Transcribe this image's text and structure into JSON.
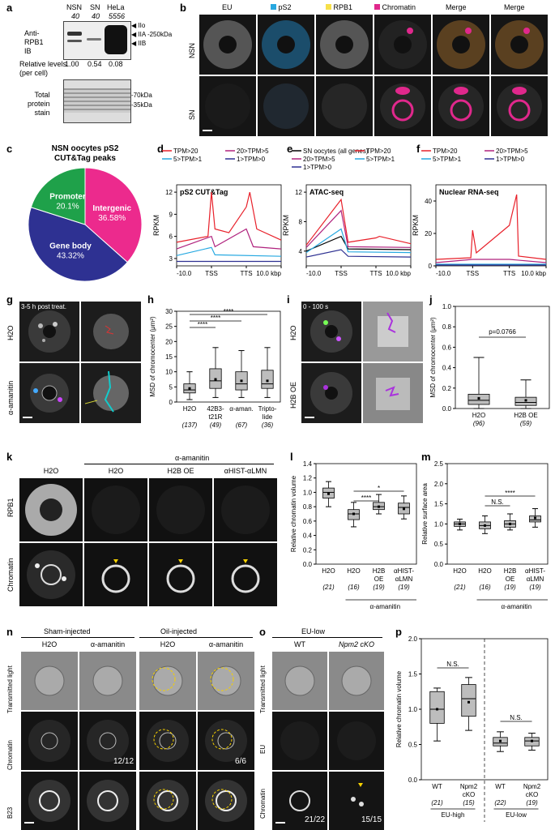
{
  "panels": {
    "a": {
      "label": "a",
      "lanes": [
        "NSN",
        "SN",
        "HeLa"
      ],
      "lane_counts": [
        "40",
        "40",
        "5556"
      ],
      "ib_label": [
        "Anti-",
        "RPB1",
        "IB"
      ],
      "bands": [
        "IIo",
        "IIA",
        "IIB"
      ],
      "mw_top": "250kDa",
      "rel_label": [
        "Relative levels",
        "(per cell)"
      ],
      "rel_values": [
        "1.00",
        "0.54",
        "0.08"
      ],
      "total_label": [
        "Total",
        "protein",
        "stain"
      ],
      "mw_low": [
        "70kDa",
        "35kDa"
      ]
    },
    "b": {
      "label": "b",
      "cols": [
        "EU",
        "pS2",
        "RPB1",
        "Chromatin",
        "Merge",
        "Merge"
      ],
      "col_colors": [
        "",
        "#29a8e0",
        "#f6e04a",
        "#e0288c",
        "",
        ""
      ],
      "rows": [
        "NSN",
        "SN"
      ]
    },
    "c": {
      "label": "c",
      "title": [
        "NSN oocytes pS2",
        "CUT&Tag peaks"
      ],
      "slices": [
        {
          "name": "Intergenic",
          "pct": "36.58%",
          "value": 36.58,
          "color": "#ec2a8d"
        },
        {
          "name": "Gene body",
          "pct": "43.32%",
          "value": 43.32,
          "color": "#2e3192"
        },
        {
          "name": "Promoter",
          "pct": "20.1%",
          "value": 20.1,
          "color": "#1fa14a"
        }
      ]
    },
    "d": {
      "label": "d",
      "title": "pS2 CUT&Tag",
      "ylabel": "RPKM",
      "yticks": [
        "3",
        "6",
        "9",
        "12"
      ],
      "xticks": [
        "-10.0",
        "TSS",
        "TTS",
        "10.0 kbp"
      ],
      "legend": [
        "TPM>20",
        "20>TPM>5",
        "5>TPM>1",
        "1>TPM>0"
      ]
    },
    "e": {
      "label": "e",
      "title": "ATAC-seq",
      "ylabel": "RPKM",
      "yticks": [
        "4",
        "8",
        "12"
      ],
      "xticks": [
        "-10.0",
        "TSS",
        "TTS",
        "10.0 kbp"
      ],
      "legend": [
        "SN oocytes (all genes)",
        "TPM>20",
        "20>TPM>5",
        "5>TPM>1",
        "1>TPM>0"
      ]
    },
    "f": {
      "label": "f",
      "title": "Nuclear RNA-seq",
      "ylabel": "RPKM",
      "yticks": [
        "0",
        "20",
        "40"
      ],
      "xticks": [
        "-10.0",
        "TSS",
        "TTS",
        "10.0 kbp"
      ],
      "legend": [
        "TPM>20",
        "20>TPM>5",
        "5>TPM>1",
        "1>TPM>0"
      ]
    },
    "g": {
      "label": "g",
      "time": "3-5 h post treat.",
      "rows": [
        "H2O",
        "α-amanitin"
      ]
    },
    "h": {
      "label": "h",
      "ylabel": "MSD of chromocenter (μm²)",
      "yticks": [
        "0",
        "5",
        "10",
        "15",
        "20",
        "25",
        "30"
      ],
      "groups": [
        "H2O",
        "42B3-",
        "α-aman.",
        "Tripto-"
      ],
      "group_sub": [
        "",
        "t21R",
        "",
        "lide"
      ],
      "n": [
        "(137)",
        "(49)",
        "(67)",
        "(36)"
      ],
      "sig": [
        "****",
        "****",
        "****"
      ]
    },
    "i": {
      "label": "i",
      "time": "0 - 100 s",
      "rows": [
        "H2O",
        "H2B OE"
      ]
    },
    "j": {
      "label": "j",
      "ylabel": "MSD of chromocenter (μm²)",
      "yticks": [
        "0.0",
        "0.2",
        "0.4",
        "0.6",
        "0.8",
        "1.0"
      ],
      "groups": [
        "H2O",
        "H2B OE"
      ],
      "n": [
        "(96)",
        "(59)"
      ],
      "pvalue": "p=0.0766"
    },
    "k": {
      "label": "k",
      "header": "α-amanitin",
      "cols": [
        "H2O",
        "H2O",
        "H2B OE",
        "αHIST-αLMN"
      ],
      "rows": [
        "RPB1",
        "Chromatin"
      ]
    },
    "l": {
      "label": "l",
      "ylabel": "Relative chromatin volume",
      "yticks": [
        "0.0",
        "0.2",
        "0.4",
        "0.6",
        "0.8",
        "1.0",
        "1.2",
        "1.4"
      ],
      "groups": [
        "H2O",
        "H2O",
        "H2B",
        "αHIST-"
      ],
      "group_sub": [
        "",
        "",
        "OE",
        "αLMN"
      ],
      "n": [
        "(21)",
        "(16)",
        "(19)",
        "(19)"
      ],
      "treat": "α-amanitin",
      "sig": [
        "****",
        "*"
      ]
    },
    "m": {
      "label": "m",
      "ylabel": "Relative surface area",
      "yticks": [
        "0.0",
        "0.5",
        "1.0",
        "1.5",
        "2.0",
        "2.5"
      ],
      "groups": [
        "H2O",
        "H2O",
        "H2B",
        "αHIST-"
      ],
      "group_sub": [
        "",
        "",
        "OE",
        "αLMN"
      ],
      "n": [
        "(21)",
        "(16)",
        "(19)",
        "(19)"
      ],
      "treat": "α-amanitin",
      "sig": [
        "N.S.",
        "****"
      ]
    },
    "n": {
      "label": "n",
      "groups": [
        "Sham-injected",
        "Oil-injected"
      ],
      "cols": [
        "H2O",
        "α-amanitin",
        "H2O",
        "α-amanitin"
      ],
      "rows": [
        "Transmitted light",
        "Chromatin",
        "B23"
      ],
      "fractions": [
        "12/12",
        "6/6"
      ]
    },
    "o": {
      "label": "o",
      "group": "EU-low",
      "cols": [
        "WT",
        "Npm2 cKO"
      ],
      "rows": [
        "Transmitted light",
        "EU",
        "Chromatin"
      ],
      "fractions": [
        "21/22",
        "15/15"
      ]
    },
    "p": {
      "label": "p",
      "ylabel": "Relative chromatin volume",
      "yticks": [
        "0.0",
        "0.5",
        "1.0",
        "1.5",
        "2.0"
      ],
      "groups": [
        "WT",
        "Npm2",
        "WT",
        "Npm2"
      ],
      "group_sub": [
        "",
        "cKO",
        "",
        "cKO"
      ],
      "n": [
        "(21)",
        "(15)",
        "(22)",
        "(19)"
      ],
      "conds": [
        "EU-high",
        "EU-low"
      ],
      "sig": [
        "N.S.",
        "N.S."
      ]
    }
  },
  "chart_data": [
    {
      "panel": "d",
      "type": "line",
      "x": [
        -10,
        0,
        10,
        20
      ],
      "series": [
        {
          "name": "TPM>20",
          "color": "#e8202a",
          "points": [
            [
              -10,
              5.2
            ],
            [
              -1,
              6
            ],
            [
              0,
              12
            ],
            [
              1,
              7
            ],
            [
              5,
              6.5
            ],
            [
              10,
              10
            ],
            [
              11,
              12
            ],
            [
              13,
              7
            ],
            [
              20,
              5.5
            ]
          ]
        },
        {
          "name": "20>TPM>5",
          "color": "#b0237e",
          "points": [
            [
              -10,
              4.3
            ],
            [
              0,
              6
            ],
            [
              1,
              4.6
            ],
            [
              10,
              7
            ],
            [
              12,
              4.6
            ],
            [
              20,
              4.3
            ]
          ]
        },
        {
          "name": "5>TPM>1",
          "color": "#27a9e1",
          "points": [
            [
              -10,
              3.4
            ],
            [
              0,
              4.5
            ],
            [
              1,
              3.5
            ],
            [
              20,
              3.3
            ]
          ]
        },
        {
          "name": "1>TPM>0",
          "color": "#2e3192",
          "points": [
            [
              -10,
              2.6
            ],
            [
              20,
              2.6
            ]
          ]
        }
      ],
      "ylim": [
        2,
        13
      ]
    },
    {
      "panel": "e",
      "type": "line",
      "x": [
        -10,
        0,
        10,
        20
      ],
      "series": [
        {
          "name": "SN oocytes (all genes)",
          "color": "#000000",
          "points": [
            [
              -10,
              4
            ],
            [
              0,
              6
            ],
            [
              2,
              4.3
            ],
            [
              20,
              4.2
            ]
          ]
        },
        {
          "name": "TPM>20",
          "color": "#e8202a",
          "points": [
            [
              -10,
              4.8
            ],
            [
              0,
              11
            ],
            [
              2,
              5.2
            ],
            [
              10,
              5.8
            ],
            [
              11,
              6
            ],
            [
              20,
              5
            ]
          ]
        },
        {
          "name": "20>TPM>5",
          "color": "#b0237e",
          "points": [
            [
              -10,
              4.5
            ],
            [
              0,
              9.5
            ],
            [
              2,
              4.6
            ],
            [
              20,
              4.5
            ]
          ]
        },
        {
          "name": "5>TPM>1",
          "color": "#27a9e1",
          "points": [
            [
              -10,
              3.8
            ],
            [
              0,
              7
            ],
            [
              2,
              3.9
            ],
            [
              20,
              3.8
            ]
          ]
        },
        {
          "name": "1>TPM>0",
          "color": "#2e3192",
          "points": [
            [
              -10,
              3.2
            ],
            [
              0,
              4.2
            ],
            [
              2,
              3.3
            ],
            [
              20,
              3.2
            ]
          ]
        }
      ],
      "ylim": [
        2,
        13
      ]
    },
    {
      "panel": "f",
      "type": "line",
      "x": [
        -10,
        0,
        10,
        20
      ],
      "series": [
        {
          "name": "TPM>20",
          "color": "#e8202a",
          "points": [
            [
              -10,
              4
            ],
            [
              -0.5,
              5
            ],
            [
              0,
              22
            ],
            [
              1,
              8
            ],
            [
              10,
              25
            ],
            [
              12,
              44
            ],
            [
              12.5,
              6
            ],
            [
              20,
              4
            ]
          ]
        },
        {
          "name": "20>TPM>5",
          "color": "#b0237e",
          "points": [
            [
              -10,
              2
            ],
            [
              0,
              4
            ],
            [
              10,
              4
            ],
            [
              20,
              2
            ]
          ]
        },
        {
          "name": "5>TPM>1",
          "color": "#27a9e1",
          "points": [
            [
              -10,
              1
            ],
            [
              20,
              1
            ]
          ]
        },
        {
          "name": "1>TPM>0",
          "color": "#2e3192",
          "points": [
            [
              -10,
              0.5
            ],
            [
              20,
              0.5
            ]
          ]
        }
      ],
      "ylim": [
        0,
        50
      ]
    },
    {
      "panel": "h",
      "type": "box",
      "categories": [
        "H2O",
        "42B3-t21R",
        "α-aman.",
        "Triptolide"
      ],
      "boxes": [
        {
          "q1": 3,
          "med": 4,
          "q3": 6,
          "lo": 0.8,
          "hi": 10,
          "mean": 4.5
        },
        {
          "q1": 4.5,
          "med": 7,
          "q3": 11,
          "lo": 1.5,
          "hi": 18,
          "mean": 7.5
        },
        {
          "q1": 4,
          "med": 6,
          "q3": 10,
          "lo": 1.5,
          "hi": 17,
          "mean": 7
        },
        {
          "q1": 4.5,
          "med": 6,
          "q3": 10.5,
          "lo": 1.5,
          "hi": 18,
          "mean": 7
        }
      ],
      "ylim": [
        0,
        30
      ]
    },
    {
      "panel": "j",
      "type": "box",
      "categories": [
        "H2O",
        "H2B OE"
      ],
      "boxes": [
        {
          "q1": 0.04,
          "med": 0.08,
          "q3": 0.14,
          "lo": 0.0,
          "hi": 0.5,
          "mean": 0.1
        },
        {
          "q1": 0.03,
          "med": 0.06,
          "q3": 0.11,
          "lo": 0.0,
          "hi": 0.28,
          "mean": 0.08
        }
      ],
      "ylim": [
        0,
        1
      ]
    },
    {
      "panel": "l",
      "type": "box",
      "categories": [
        "H2O",
        "H2O",
        "H2B OE",
        "αHIST-αLMN"
      ],
      "boxes": [
        {
          "q1": 0.92,
          "med": 1.0,
          "q3": 1.06,
          "lo": 0.8,
          "hi": 1.15,
          "mean": 0.98
        },
        {
          "q1": 0.62,
          "med": 0.7,
          "q3": 0.76,
          "lo": 0.52,
          "hi": 0.86,
          "mean": 0.7
        },
        {
          "q1": 0.76,
          "med": 0.8,
          "q3": 0.86,
          "lo": 0.7,
          "hi": 0.97,
          "mean": 0.8
        },
        {
          "q1": 0.7,
          "med": 0.79,
          "q3": 0.85,
          "lo": 0.63,
          "hi": 0.95,
          "mean": 0.77
        }
      ],
      "ylim": [
        0,
        1.4
      ]
    },
    {
      "panel": "m",
      "type": "box",
      "categories": [
        "H2O",
        "H2O",
        "H2B OE",
        "αHIST-αLMN"
      ],
      "boxes": [
        {
          "q1": 0.94,
          "med": 1.0,
          "q3": 1.05,
          "lo": 0.85,
          "hi": 1.12,
          "mean": 1.0
        },
        {
          "q1": 0.88,
          "med": 0.96,
          "q3": 1.05,
          "lo": 0.76,
          "hi": 1.2,
          "mean": 0.96
        },
        {
          "q1": 0.92,
          "med": 1.0,
          "q3": 1.08,
          "lo": 0.85,
          "hi": 1.25,
          "mean": 1.0
        },
        {
          "q1": 1.05,
          "med": 1.1,
          "q3": 1.2,
          "lo": 0.92,
          "hi": 1.38,
          "mean": 1.15
        }
      ],
      "ylim": [
        0,
        2.5
      ]
    },
    {
      "panel": "p",
      "type": "box",
      "categories": [
        "WT",
        "Npm2 cKO",
        "WT",
        "Npm2 cKO"
      ],
      "boxes": [
        {
          "q1": 0.8,
          "med": 1.0,
          "q3": 1.25,
          "lo": 0.55,
          "hi": 1.3,
          "mean": 1.0
        },
        {
          "q1": 0.9,
          "med": 1.15,
          "q3": 1.35,
          "lo": 0.7,
          "hi": 1.45,
          "mean": 1.1
        },
        {
          "q1": 0.48,
          "med": 0.52,
          "q3": 0.6,
          "lo": 0.4,
          "hi": 0.68,
          "mean": 0.55
        },
        {
          "q1": 0.48,
          "med": 0.55,
          "q3": 0.6,
          "lo": 0.42,
          "hi": 0.66,
          "mean": 0.55
        }
      ],
      "ylim": [
        0,
        2
      ]
    }
  ]
}
